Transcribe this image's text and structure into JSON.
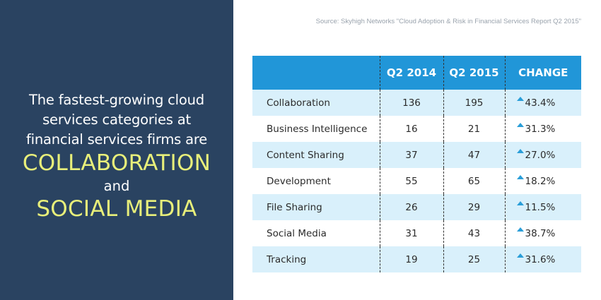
{
  "headline": {
    "line1": "The fastest-growing cloud",
    "line2": "services categories at",
    "line3": "financial services firms are",
    "highlight1": "COLLABORATION",
    "connector": "and",
    "highlight2": "SOCIAL MEDIA"
  },
  "source": "Source: Skyhigh Networks \"Cloud Adoption & Risk in Financial Services Report Q2 2015\"",
  "colors": {
    "panel": "#2a4361",
    "highlight": "#e8ef7a",
    "header": "#2196d8",
    "row_shade": "#d9f0fb",
    "up_arrow": "#2a9ed8"
  },
  "chart_data": {
    "type": "table",
    "columns": [
      "",
      "Q2 2014",
      "Q2 2015",
      "CHANGE"
    ],
    "rows": [
      {
        "category": "Collaboration",
        "q2_2014": "136",
        "q2_2015": "195",
        "change": "43.4%",
        "direction": "up"
      },
      {
        "category": "Business Intelligence",
        "q2_2014": "16",
        "q2_2015": "21",
        "change": "31.3%",
        "direction": "up"
      },
      {
        "category": "Content Sharing",
        "q2_2014": "37",
        "q2_2015": "47",
        "change": "27.0%",
        "direction": "up"
      },
      {
        "category": "Development",
        "q2_2014": "55",
        "q2_2015": "65",
        "change": "18.2%",
        "direction": "up"
      },
      {
        "category": "File Sharing",
        "q2_2014": "26",
        "q2_2015": "29",
        "change": "11.5%",
        "direction": "up"
      },
      {
        "category": "Social Media",
        "q2_2014": "31",
        "q2_2015": "43",
        "change": "38.7%",
        "direction": "up"
      },
      {
        "category": "Tracking",
        "q2_2014": "19",
        "q2_2015": "25",
        "change": "31.6%",
        "direction": "up"
      }
    ]
  }
}
